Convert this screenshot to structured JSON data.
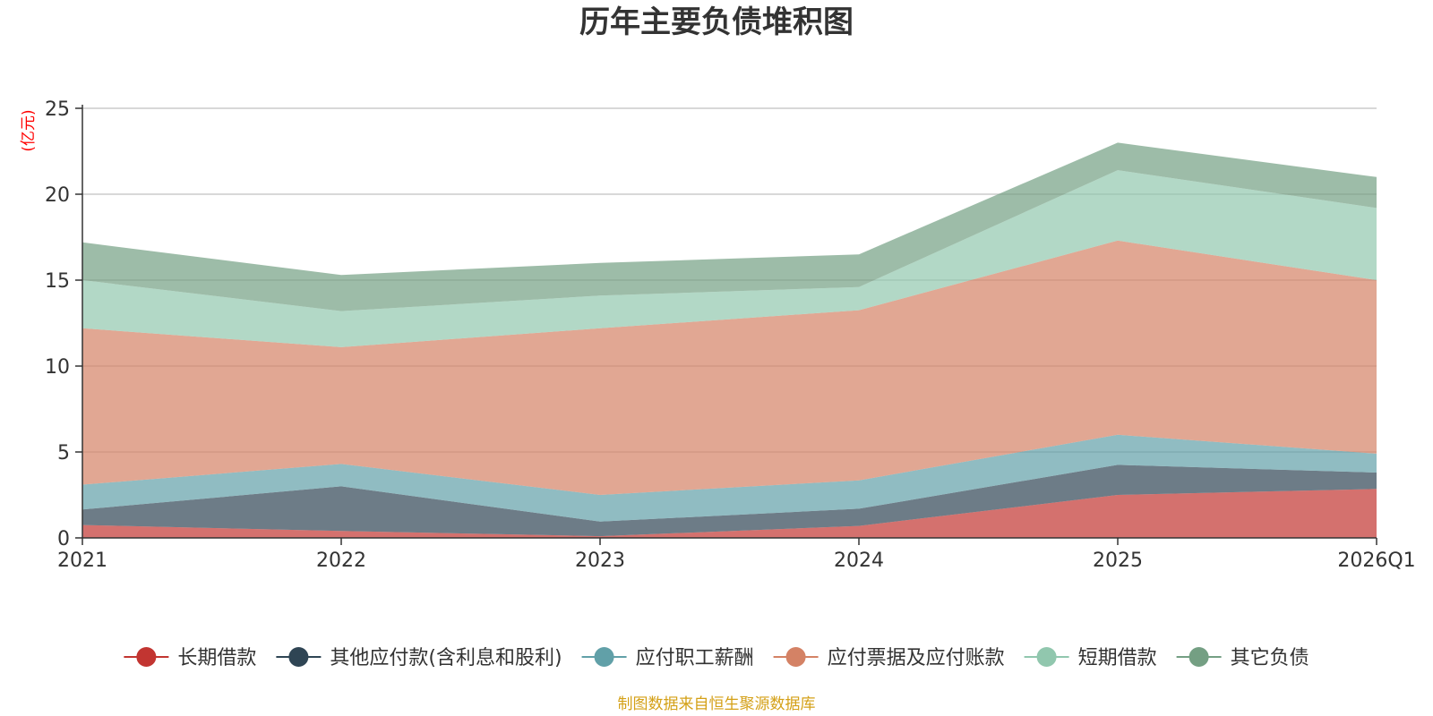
{
  "chart_data": {
    "type": "area",
    "stacked": true,
    "title": "历年主要负债堆积图",
    "ylabel": "(亿元)",
    "xlabel": "",
    "ylim": [
      0,
      25
    ],
    "yticks": [
      0,
      5,
      10,
      15,
      20,
      25
    ],
    "grid": true,
    "legend_position": "bottom",
    "categories": [
      "2021",
      "2022",
      "2023",
      "2024",
      "2025",
      "2026Q1"
    ],
    "series": [
      {
        "name": "长期借款",
        "color": "#c23531",
        "values": [
          0.75,
          0.4,
          0.1,
          0.7,
          2.5,
          2.85
        ]
      },
      {
        "name": "其他应付款(含利息和股利)",
        "color": "#2f4554",
        "values": [
          0.9,
          2.6,
          0.85,
          1.0,
          1.75,
          0.95
        ]
      },
      {
        "name": "应付职工薪酬",
        "color": "#61a0a8",
        "values": [
          1.45,
          1.3,
          1.55,
          1.65,
          1.75,
          1.1
        ]
      },
      {
        "name": "应付票据及应付账款",
        "color": "#d48265",
        "values": [
          9.1,
          6.8,
          9.7,
          9.9,
          11.3,
          10.1
        ]
      },
      {
        "name": "短期借款",
        "color": "#91c7ae",
        "values": [
          2.8,
          2.1,
          1.9,
          1.35,
          4.1,
          4.2
        ]
      },
      {
        "name": "其它负债",
        "color": "#749f83",
        "values": [
          2.2,
          2.1,
          1.9,
          1.9,
          1.6,
          1.8
        ]
      }
    ],
    "source_note": "制图数据来自恒生聚源数据库"
  },
  "colors": {
    "title": "#333333",
    "axis": "#333333",
    "grid": "#cccccc",
    "unit_label": "#ff0000",
    "source_note": "#d4a017"
  }
}
